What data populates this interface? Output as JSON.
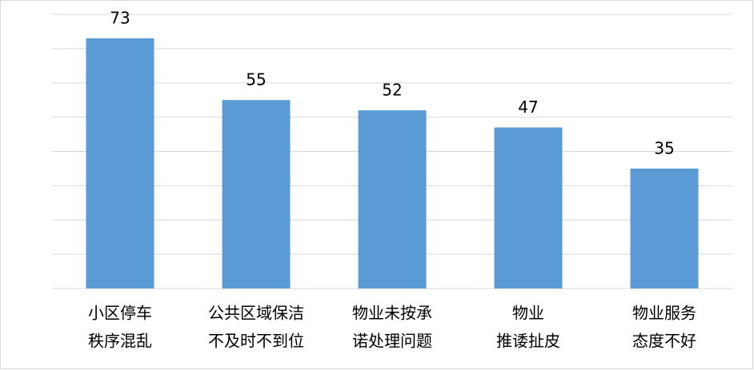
{
  "chart_data": {
    "type": "bar",
    "categories": [
      [
        "小区停车",
        "秩序混乱"
      ],
      [
        "公共区域保洁",
        "不及时不到位"
      ],
      [
        "物业未按承",
        "诺处理问题"
      ],
      [
        "物业",
        "推诿扯皮"
      ],
      [
        "物业服务",
        "态度不好"
      ]
    ],
    "values": [
      73,
      55,
      52,
      47,
      35
    ],
    "color": "#5b9bd5",
    "ylim": [
      0,
      80
    ],
    "yticks": [
      0,
      10,
      20,
      30,
      40,
      50,
      60,
      70,
      80
    ],
    "grid": true
  }
}
